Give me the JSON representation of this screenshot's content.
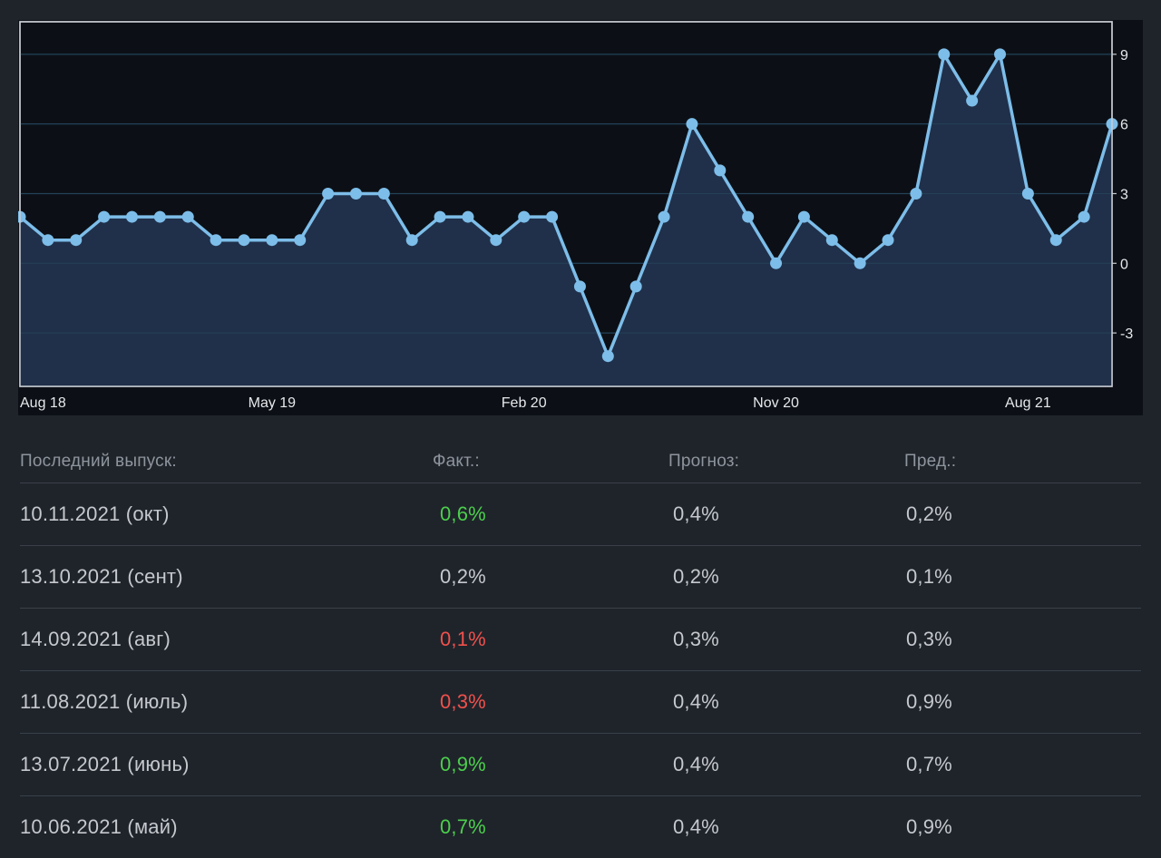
{
  "chart_data": {
    "type": "area",
    "x_tick_labels": [
      "Aug 18",
      "May 19",
      "Feb 20",
      "Nov 20",
      "Aug 21"
    ],
    "y_ticks": [
      -3,
      0,
      3,
      6,
      9
    ],
    "ylim": [
      -5.3,
      10.4
    ],
    "x": [
      "Aug 18",
      "Sep 18",
      "Oct 18",
      "Nov 18",
      "Dec 18",
      "Jan 19",
      "Feb 19",
      "Mar 19",
      "Apr 19",
      "May 19",
      "Jun 19",
      "Jul 19",
      "Aug 19",
      "Sep 19",
      "Oct 19",
      "Nov 19",
      "Dec 19",
      "Jan 20",
      "Feb 20",
      "Mar 20",
      "Apr 20",
      "May 20",
      "Jun 20",
      "Jul 20",
      "Aug 20",
      "Sep 20",
      "Oct 20",
      "Nov 20",
      "Dec 20",
      "Jan 21",
      "Feb 21",
      "Mar 21",
      "Apr 21",
      "May 21",
      "Jun 21",
      "Jul 21",
      "Aug 21",
      "Sep 21",
      "Oct 21",
      "Nov 21"
    ],
    "values": [
      2,
      1,
      1,
      2,
      2,
      2,
      2,
      1,
      1,
      1,
      1,
      3,
      3,
      3,
      1,
      2,
      2,
      1,
      2,
      2,
      -1,
      -4,
      -1,
      2,
      6,
      4,
      2,
      0,
      2,
      1,
      0,
      1,
      3,
      9,
      7,
      9,
      3,
      1,
      2,
      6
    ],
    "grid": true,
    "y_axis_position": "right",
    "colors": {
      "line": "#7dbde9",
      "fill": "#22334d",
      "grid": "#1b3a4f",
      "background": "#0c1016"
    }
  },
  "table": {
    "headers": {
      "date": "Последний выпуск:",
      "fact": "Факт.:",
      "forecast": "Прогноз:",
      "prev": "Пред.:"
    },
    "rows": [
      {
        "date": "10.11.2021 (окт)",
        "fact": "0,6%",
        "fact_status": "up",
        "forecast": "0,4%",
        "prev": "0,2%"
      },
      {
        "date": "13.10.2021 (сент)",
        "fact": "0,2%",
        "fact_status": "flat",
        "forecast": "0,2%",
        "prev": "0,1%"
      },
      {
        "date": "14.09.2021 (авг)",
        "fact": "0,1%",
        "fact_status": "down",
        "forecast": "0,3%",
        "prev": "0,3%"
      },
      {
        "date": "11.08.2021 (июль)",
        "fact": "0,3%",
        "fact_status": "down",
        "forecast": "0,4%",
        "prev": "0,9%"
      },
      {
        "date": "13.07.2021 (июнь)",
        "fact": "0,9%",
        "fact_status": "up",
        "forecast": "0,4%",
        "prev": "0,7%"
      },
      {
        "date": "10.06.2021 (май)",
        "fact": "0,7%",
        "fact_status": "up",
        "forecast": "0,4%",
        "prev": "0,9%"
      }
    ],
    "status_colors": {
      "up": "#4ccf4c",
      "down": "#f0514c",
      "flat": "#c5c8cc"
    }
  }
}
